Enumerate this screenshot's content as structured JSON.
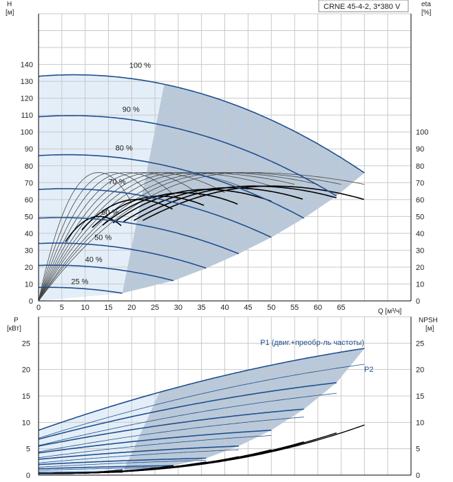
{
  "title_box": "CRNE 45-4-2, 3*380 V",
  "colors": {
    "grid": "#c8c8c8",
    "shade_dark": "#b9c9da",
    "shade_light": "#e3eef8",
    "curve_blue": "#1f4e8c",
    "curve_thin": "#444444",
    "curve_black": "#000000",
    "axis": "#000000"
  },
  "chart_data": [
    {
      "type": "line",
      "name": "QH",
      "x_axis": {
        "label": "Q [м³/ч]",
        "ticks": [
          0,
          5,
          10,
          15,
          20,
          25,
          30,
          35,
          40,
          45,
          50,
          55,
          60,
          65
        ],
        "range": [
          0,
          80
        ]
      },
      "y_left": {
        "label_line1": "H",
        "label_line2": "[м]",
        "ticks": [
          0,
          10,
          20,
          30,
          40,
          50,
          60,
          70,
          80,
          90,
          100,
          110,
          120,
          130,
          140
        ],
        "range": [
          0,
          170
        ]
      },
      "y_right": {
        "label_line1": "eta",
        "label_line2": "[%]",
        "ticks": [
          0,
          10,
          20,
          30,
          40,
          50,
          60,
          70,
          80,
          90,
          100
        ],
        "range": [
          0,
          170
        ]
      },
      "head_curves": [
        {
          "label": "100 %",
          "q_max": 70,
          "h0": 133,
          "label_q": 19.5,
          "label_h": 138
        },
        {
          "label": "90 %",
          "q_max": 64,
          "h0": 109,
          "label_q": 18,
          "label_h": 112
        },
        {
          "label": "80 %",
          "q_max": 57,
          "h0": 86,
          "label_q": 16.5,
          "label_h": 89
        },
        {
          "label": "70 %",
          "q_max": 50,
          "h0": 66,
          "label_q": 15,
          "label_h": 69
        },
        {
          "label": "60 %",
          "q_max": 43,
          "h0": 49,
          "label_q": 13.5,
          "label_h": 51
        },
        {
          "label": "50 %",
          "q_max": 36,
          "h0": 34,
          "label_q": 12,
          "label_h": 36
        },
        {
          "label": "40 %",
          "q_max": 29,
          "h0": 21,
          "label_q": 10,
          "label_h": 23
        },
        {
          "label": "25 %",
          "q_max": 18,
          "h0": 8,
          "label_q": 7,
          "label_h": 10
        }
      ],
      "eta_curves_thin": [
        {
          "q_max": 70,
          "peak_q": 45,
          "peak": 76,
          "end": 69
        },
        {
          "q_max": 65,
          "peak_q": 41,
          "peak": 76,
          "end": 69
        },
        {
          "q_max": 60,
          "peak_q": 38,
          "peak": 76,
          "end": 69
        },
        {
          "q_max": 55,
          "peak_q": 34,
          "peak": 76,
          "end": 69
        },
        {
          "q_max": 50,
          "peak_q": 31,
          "peak": 76,
          "end": 68
        },
        {
          "q_max": 45,
          "peak_q": 28,
          "peak": 76,
          "end": 66
        },
        {
          "q_max": 40,
          "peak_q": 25,
          "peak": 76,
          "end": 64
        },
        {
          "q_max": 35,
          "peak_q": 22,
          "peak": 76,
          "end": 62
        },
        {
          "q_max": 30,
          "peak_q": 19,
          "peak": 76,
          "end": 60
        },
        {
          "q_max": 25,
          "peak_q": 16,
          "peak": 76,
          "end": 59
        },
        {
          "q_max": 20,
          "peak_q": 13,
          "peak": 76,
          "end": 58
        }
      ],
      "eta_curves_bold": [
        {
          "q_max": 70,
          "peak_q": 50,
          "peak": 68,
          "end": 60
        },
        {
          "q_max": 64,
          "peak_q": 46,
          "peak": 68,
          "end": 61
        },
        {
          "q_max": 57,
          "peak_q": 41,
          "peak": 67,
          "end": 60
        },
        {
          "q_max": 50,
          "peak_q": 36,
          "peak": 66,
          "end": 59
        },
        {
          "q_max": 43,
          "peak_q": 31,
          "peak": 64,
          "end": 57
        },
        {
          "q_max": 36,
          "peak_q": 26,
          "peak": 62,
          "end": 56
        },
        {
          "q_max": 29,
          "peak_q": 21,
          "peak": 60,
          "end": 54
        },
        {
          "q_max": 18,
          "peak_q": 13,
          "peak": 50,
          "end": 44
        }
      ]
    },
    {
      "type": "line",
      "name": "Power",
      "x_axis": {
        "ticks": [
          0,
          5,
          10,
          15,
          20,
          25,
          30,
          35,
          40,
          45,
          50,
          55,
          60,
          65
        ],
        "range": [
          0,
          80
        ]
      },
      "y_left": {
        "label_line1": "P",
        "label_line2": "[кВт]",
        "ticks": [
          0,
          5,
          10,
          15,
          20,
          25
        ],
        "range": [
          0,
          30
        ]
      },
      "y_right": {
        "label_line1": "NPSH",
        "label_line2": "[м]",
        "ticks": [
          0,
          5,
          10,
          15,
          20,
          25
        ],
        "range": [
          0,
          30
        ]
      },
      "series_labels": {
        "p1": "P1 (двиг.+преобр-ль частоты)",
        "p2": "P2"
      },
      "p1_curves": [
        {
          "q_max": 70,
          "p0": 8.5,
          "p_end": 24.0
        },
        {
          "q_max": 64,
          "p0": 6.8,
          "p_end": 17.5
        },
        {
          "q_max": 57,
          "p0": 5.5,
          "p_end": 12.5
        },
        {
          "q_max": 50,
          "p0": 4.2,
          "p_end": 8.5
        },
        {
          "q_max": 43,
          "p0": 3.0,
          "p_end": 5.5
        },
        {
          "q_max": 36,
          "p0": 2.0,
          "p_end": 3.2
        },
        {
          "q_max": 29,
          "p0": 1.2,
          "p_end": 1.8
        },
        {
          "q_max": 18,
          "p0": 0.5,
          "p_end": 0.6
        }
      ],
      "p2_curves": [
        {
          "q_max": 70,
          "p0": 7.0,
          "p_end": 21.0
        },
        {
          "q_max": 64,
          "p0": 5.6,
          "p_end": 15.5
        },
        {
          "q_max": 57,
          "p0": 4.4,
          "p_end": 11.0
        },
        {
          "q_max": 50,
          "p0": 3.3,
          "p_end": 7.5
        },
        {
          "q_max": 43,
          "p0": 2.3,
          "p_end": 4.8
        },
        {
          "q_max": 36,
          "p0": 1.5,
          "p_end": 2.8
        },
        {
          "q_max": 29,
          "p0": 0.9,
          "p_end": 1.5
        },
        {
          "q_max": 18,
          "p0": 0.3,
          "p_end": 0.5
        }
      ],
      "npsh_curves": [
        {
          "q_max": 70,
          "end": 9.5
        },
        {
          "q_max": 64,
          "end": 8.0
        },
        {
          "q_max": 57,
          "end": 6.3
        },
        {
          "q_max": 50,
          "end": 4.8
        },
        {
          "q_max": 43,
          "end": 3.5
        },
        {
          "q_max": 36,
          "end": 2.5
        },
        {
          "q_max": 29,
          "end": 1.8
        },
        {
          "q_max": 18,
          "end": 1.0
        }
      ]
    }
  ]
}
